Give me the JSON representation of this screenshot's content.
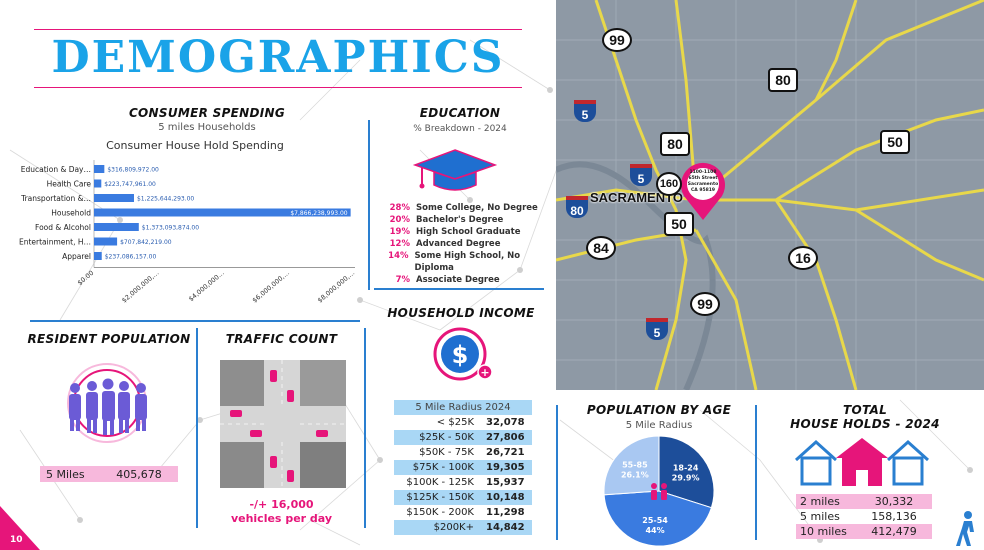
{
  "title": "DEMOGRAPHICS",
  "page_number": "10",
  "colors": {
    "accent_pink": "#e6157a",
    "accent_blue": "#2a7fd0",
    "title_blue": "#1aa3e8",
    "bar_blue": "#3a7be0"
  },
  "consumer_spending": {
    "title": "CONSUMER SPENDING",
    "subtitle": "5 miles Households",
    "chart_title": "Consumer House Hold Spending"
  },
  "chart_data": {
    "type": "bar",
    "orientation": "horizontal",
    "title": "Consumer House Hold Spending",
    "categories": [
      "Education & Day…",
      "Health Care",
      "Transportation &…",
      "Household",
      "Food & Alcohol",
      "Entertainment, H…",
      "Apparel"
    ],
    "values": [
      316809972,
      223747961,
      1225644293,
      7866238993,
      1373093874,
      707842219,
      237086157
    ],
    "value_labels": [
      "$316,809,972.00",
      "$223,747,961.00",
      "$1,225,644,293.00",
      "$7,866,238,993.00",
      "$1,373,093,874.00",
      "$707,842,219.00",
      "$237,086,157.00"
    ],
    "xlim": [
      0,
      8000000000
    ],
    "xticks": [
      "$0.00",
      "$2,000,000,…",
      "$4,000,000…",
      "$6,000,000,…",
      "$8,000,000,…"
    ]
  },
  "education": {
    "title": "EDUCATION",
    "subtitle": "% Breakdown - 2024",
    "icon": "graduation-cap-icon",
    "rows": [
      {
        "pct": "28%",
        "label": "Some College, No Degree"
      },
      {
        "pct": "20%",
        "label": "Bachelor's Degree"
      },
      {
        "pct": "19%",
        "label": "High School Graduate"
      },
      {
        "pct": "12%",
        "label": "Advanced Degree"
      },
      {
        "pct": "14%",
        "label": "Some High School, No Diploma"
      },
      {
        "pct": "7%",
        "label": "Associate Degree"
      }
    ]
  },
  "household_income": {
    "title": "HOUSEHOLD INCOME",
    "icon": "dollar-plus-icon",
    "header": "5 Mile Radius 2024",
    "rows": [
      {
        "label": "< $25K",
        "value": "32,078"
      },
      {
        "label": "$25K - 50K",
        "value": "27,806"
      },
      {
        "label": "$50K - 75K",
        "value": "26,721"
      },
      {
        "label": "$75K - 100K",
        "value": "19,305"
      },
      {
        "label": "$100K - 125K",
        "value": "15,937"
      },
      {
        "label": "$125K - 150K",
        "value": "10,148"
      },
      {
        "label": "$150K - 200K",
        "value": "11,298"
      },
      {
        "label": "$200K+",
        "value": "14,842"
      }
    ]
  },
  "resident_population": {
    "title": "RESIDENT POPULATION",
    "label": "5 Miles",
    "value": "405,678"
  },
  "traffic_count": {
    "title": "TRAFFIC COUNT",
    "line1": "-/+ 16,000",
    "line2": "vehicles per day"
  },
  "population_by_age": {
    "title": "POPULATION BY AGE",
    "subtitle": "5 Mile Radius",
    "slices": [
      {
        "label": "18-24",
        "pct": "29.9%",
        "value": 29.9,
        "color": "#1d4e9a"
      },
      {
        "label": "25-54",
        "pct": "44%",
        "value": 44,
        "color": "#3a7be0"
      },
      {
        "label": "55-85",
        "pct": "26.1%",
        "value": 26.1,
        "color": "#a9c8f2"
      }
    ]
  },
  "total_households": {
    "title_line1": "TOTAL",
    "title_line2": "HOUSE HOLDS - 2024",
    "rows": [
      {
        "label": "2 miles",
        "value": "30,332"
      },
      {
        "label": "5 miles",
        "value": "158,136"
      },
      {
        "label": "10 miles",
        "value": "412,479"
      }
    ]
  },
  "map": {
    "city_label": "SACRAMENTO",
    "pin_text": [
      "1100-1108",
      "65th Street",
      "Sacramento",
      "CA 95819"
    ],
    "shields": [
      {
        "text": "99",
        "type": "state"
      },
      {
        "text": "80",
        "type": "us"
      },
      {
        "text": "5",
        "type": "interstate"
      },
      {
        "text": "80",
        "type": "us"
      },
      {
        "text": "50",
        "type": "us"
      },
      {
        "text": "80",
        "type": "interstate"
      },
      {
        "text": "160",
        "type": "state"
      },
      {
        "text": "5",
        "type": "interstate"
      },
      {
        "text": "50",
        "type": "us"
      },
      {
        "text": "84",
        "type": "state"
      },
      {
        "text": "16",
        "type": "state"
      },
      {
        "text": "99",
        "type": "state"
      },
      {
        "text": "5",
        "type": "interstate"
      }
    ]
  }
}
